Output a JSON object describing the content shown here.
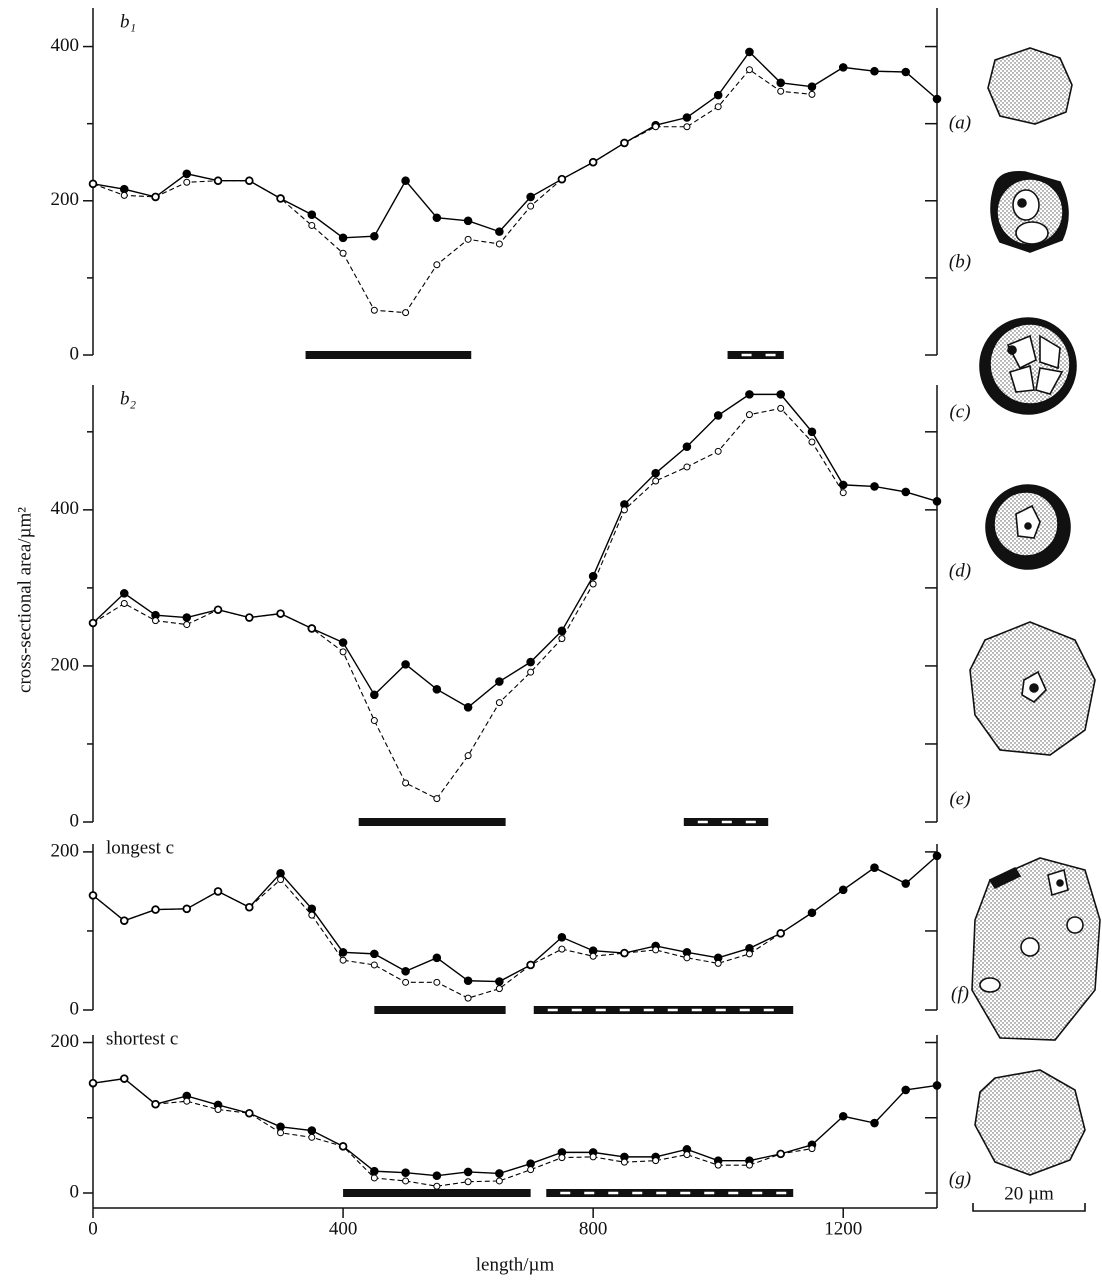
{
  "chart_data": [
    {
      "type": "line",
      "label": "b₁",
      "x": [
        0,
        50,
        100,
        150,
        200,
        250,
        300,
        350,
        400,
        450,
        500,
        550,
        600,
        650,
        700,
        750,
        800,
        850,
        900,
        950,
        1000,
        1050,
        1100,
        1150,
        1200,
        1250,
        1300,
        1350
      ],
      "series": [
        {
          "color": "#000",
          "marker": "filled",
          "values": [
            222,
            215,
            205,
            235,
            226,
            226,
            203,
            182,
            152,
            154,
            226,
            178,
            174,
            160,
            205,
            228,
            250,
            275,
            298,
            308,
            337,
            393,
            353,
            348,
            373,
            368,
            367,
            332
          ]
        },
        {
          "color": "#000",
          "marker": "open",
          "values": [
            222,
            207,
            205,
            224,
            226,
            226,
            203,
            168,
            132,
            58,
            55,
            117,
            150,
            144,
            193,
            228,
            250,
            275,
            296,
            296,
            322,
            370,
            342,
            338,
            null,
            null,
            null,
            null
          ]
        }
      ],
      "bars": [
        {
          "start": 340,
          "end": 605,
          "style": "solid"
        },
        {
          "start": 1015,
          "end": 1105,
          "style": "dashed"
        }
      ],
      "xlim": [
        0,
        1350
      ],
      "ylim": [
        0,
        450
      ],
      "yticks": [
        0,
        200,
        400
      ],
      "yminor": [
        100,
        300
      ]
    },
    {
      "type": "line",
      "label": "b₂",
      "x": [
        0,
        50,
        100,
        150,
        200,
        250,
        300,
        350,
        400,
        450,
        500,
        550,
        600,
        650,
        700,
        750,
        800,
        850,
        900,
        950,
        1000,
        1050,
        1100,
        1150,
        1200,
        1250,
        1300,
        1350
      ],
      "series": [
        {
          "color": "#000",
          "marker": "filled",
          "values": [
            255,
            293,
            265,
            262,
            272,
            262,
            267,
            248,
            230,
            163,
            202,
            170,
            147,
            180,
            205,
            245,
            315,
            407,
            447,
            481,
            521,
            548,
            548,
            500,
            432,
            430,
            423,
            411
          ]
        },
        {
          "color": "#000",
          "marker": "open",
          "values": [
            255,
            280,
            258,
            253,
            272,
            262,
            267,
            248,
            218,
            130,
            50,
            30,
            85,
            153,
            192,
            235,
            305,
            400,
            437,
            455,
            475,
            522,
            530,
            487,
            422,
            null,
            null,
            null
          ]
        }
      ],
      "bars": [
        {
          "start": 425,
          "end": 660,
          "style": "solid"
        },
        {
          "start": 945,
          "end": 1080,
          "style": "dashed"
        }
      ],
      "xlim": [
        0,
        1350
      ],
      "ylim": [
        0,
        560
      ],
      "yticks": [
        0,
        200,
        400
      ],
      "yminor": [
        100,
        300,
        500
      ]
    },
    {
      "type": "line",
      "label": "longest c",
      "x": [
        0,
        50,
        100,
        150,
        200,
        250,
        300,
        350,
        400,
        450,
        500,
        550,
        600,
        650,
        700,
        750,
        800,
        850,
        900,
        950,
        1000,
        1050,
        1100,
        1150,
        1200,
        1250,
        1300,
        1350
      ],
      "series": [
        {
          "color": "#000",
          "marker": "filled",
          "values": [
            145,
            113,
            127,
            128,
            150,
            130,
            173,
            128,
            73,
            71,
            49,
            66,
            37,
            36,
            57,
            92,
            75,
            72,
            81,
            73,
            66,
            78,
            97,
            123,
            152,
            180,
            160,
            195
          ]
        },
        {
          "color": "#000",
          "marker": "open",
          "values": [
            145,
            113,
            127,
            128,
            150,
            130,
            165,
            120,
            63,
            57,
            35,
            35,
            15,
            27,
            57,
            77,
            68,
            72,
            76,
            66,
            59,
            71,
            97,
            null,
            null,
            null,
            null,
            null
          ]
        }
      ],
      "bars": [
        {
          "start": 450,
          "end": 660,
          "style": "solid"
        },
        {
          "start": 705,
          "end": 1120,
          "style": "dashed"
        }
      ],
      "xlim": [
        0,
        1350
      ],
      "ylim": [
        0,
        210
      ],
      "yticks": [
        0,
        200
      ],
      "yminor": [
        100
      ]
    },
    {
      "type": "line",
      "label": "shortest c",
      "x": [
        0,
        50,
        100,
        150,
        200,
        250,
        300,
        350,
        400,
        450,
        500,
        550,
        600,
        650,
        700,
        750,
        800,
        850,
        900,
        950,
        1000,
        1050,
        1100,
        1150,
        1200,
        1250,
        1300,
        1350
      ],
      "series": [
        {
          "color": "#000",
          "marker": "filled",
          "values": [
            146,
            152,
            118,
            129,
            117,
            106,
            88,
            83,
            62,
            29,
            27,
            23,
            28,
            26,
            39,
            54,
            54,
            48,
            48,
            58,
            43,
            43,
            52,
            64,
            102,
            93,
            137,
            143
          ]
        },
        {
          "color": "#000",
          "marker": "open",
          "values": [
            146,
            152,
            118,
            122,
            111,
            106,
            80,
            74,
            62,
            20,
            16,
            9,
            15,
            16,
            31,
            47,
            48,
            41,
            43,
            51,
            37,
            37,
            52,
            59,
            null,
            null,
            null,
            null
          ]
        }
      ],
      "bars": [
        {
          "start": 400,
          "end": 700,
          "style": "solid"
        },
        {
          "start": 725,
          "end": 1120,
          "style": "dashed"
        }
      ],
      "xlim": [
        0,
        1350
      ],
      "ylim": [
        0,
        210
      ],
      "yticks": [
        0,
        200
      ],
      "yminor": [
        100
      ],
      "xticks": [
        0,
        400,
        800,
        1200
      ],
      "xlabel": "length/µm"
    }
  ],
  "ylabel": "cross-sectional area/µm²",
  "insets": {
    "labels": [
      "(a)",
      "(b)",
      "(c)",
      "(d)",
      "(e)",
      "(f)",
      "(g)"
    ],
    "scale_bar": "20 µm"
  }
}
